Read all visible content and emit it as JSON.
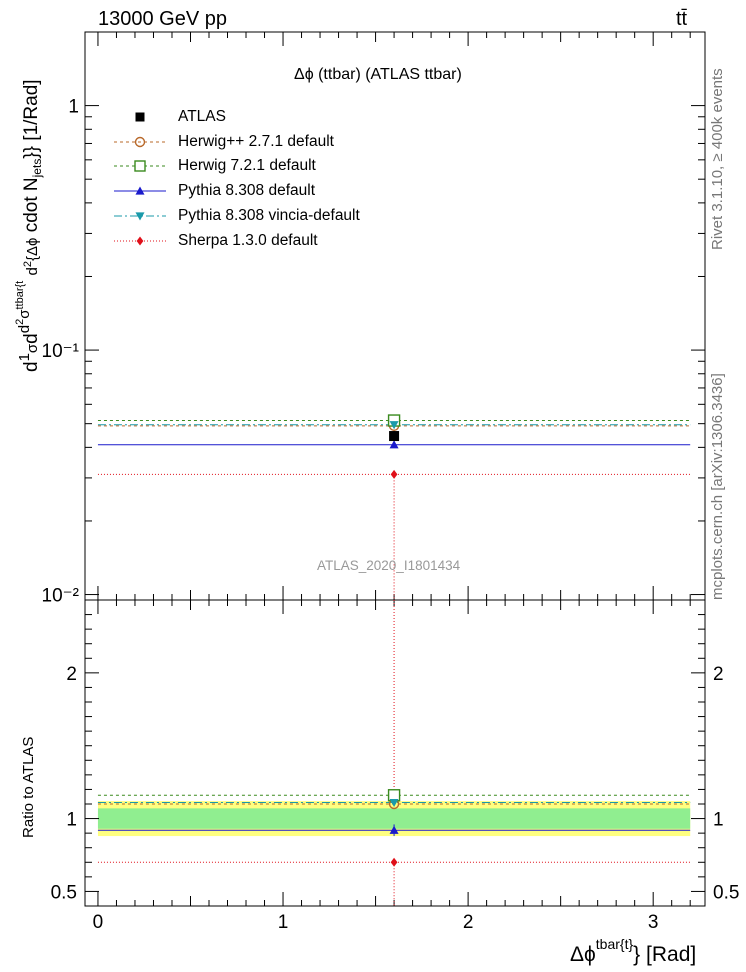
{
  "header": {
    "energy": "13000 GeV pp",
    "process": "tt̄"
  },
  "side": {
    "rivet": "Rivet 3.1.10, ≥ 400k events",
    "mcplots": "mcplots.cern.ch [arXiv:1306.3436]"
  },
  "chart_data": [
    {
      "type": "scatter",
      "title": "Δϕ (ttbar) (ATLAS ttbar)",
      "watermark": "ATLAS_2020_I1801434",
      "ylabel": "d²σ / d² {Δϕ^{tbar{t}}} cdot N_jets}} [1/Rad]",
      "ylabel_parts": {
        "frac": "d",
        "one": "1",
        "sigma": "σ",
        "d2": "d",
        "num": "d",
        "sup2": "2",
        "sig": "σ",
        "supttbar": "ttbar{t",
        "den": "d",
        "den2": "2",
        "phi": "{Δϕ",
        "rest": "cdot N",
        "jets": "jets",
        "unit": "}} [1/Rad]"
      },
      "yscale": "log",
      "ylim": [
        0.0095,
        2.0
      ],
      "xlim": [
        -0.07,
        3.28
      ],
      "ytick_labels": [
        "10⁻²",
        "10⁻¹",
        "1"
      ],
      "y_ticks": [
        0.01,
        0.1,
        1
      ],
      "x_bin": [
        0,
        3.2
      ],
      "x_center": 1.6,
      "series": [
        {
          "name": "ATLAS",
          "value": 0.0445,
          "color": "#000000",
          "marker": "square-filled"
        },
        {
          "name": "Herwig++ 2.7.1 default",
          "value": 0.049,
          "color": "#b8682a",
          "marker": "circle-open",
          "dash": "3,3"
        },
        {
          "name": "Herwig 7.2.1 default",
          "value": 0.0515,
          "color": "#3a8a1e",
          "marker": "square-open",
          "dash": "3,3"
        },
        {
          "name": "Pythia 8.308 default",
          "value": 0.041,
          "color": "#1a1acc",
          "marker": "triangle-up",
          "dash": ""
        },
        {
          "name": "Pythia 8.308 vincia-default",
          "value": 0.0495,
          "color": "#1a9aaa",
          "marker": "triangle-down",
          "dash": "8,3,2,3"
        },
        {
          "name": "Sherpa 1.3.0 default",
          "value": 0.031,
          "color": "#e0101a",
          "marker": "diamond",
          "dash": "1,2"
        }
      ]
    },
    {
      "type": "scatter",
      "title": "Ratio to ATLAS",
      "ylabel": "Ratio to ATLAS",
      "xlabel": "Δϕ^{tbar{t}} [Rad]",
      "xlabel_parts": {
        "main": "Δϕ",
        "sup": "tbar{t}",
        "tail": "} [Rad]"
      },
      "ylim": [
        0.4,
        2.5
      ],
      "y_ticks": [
        0.5,
        1,
        2
      ],
      "ytick_labels": [
        "0.5",
        "1",
        "2"
      ],
      "x_ticks": [
        0,
        1,
        2,
        3
      ],
      "xtick_labels": [
        "0",
        "1",
        "2",
        "3"
      ],
      "band_stat": [
        0.93,
        1.07
      ],
      "band_total": [
        0.88,
        1.12
      ],
      "ratios": [
        {
          "name": "Herwig++ 2.7.1 default",
          "value": 1.1
        },
        {
          "name": "Herwig 7.2.1 default",
          "value": 1.16
        },
        {
          "name": "Pythia 8.308 default",
          "value": 0.92
        },
        {
          "name": "Pythia 8.308 vincia-default",
          "value": 1.11
        },
        {
          "name": "Sherpa 1.3.0 default",
          "value": 0.7
        }
      ]
    }
  ]
}
